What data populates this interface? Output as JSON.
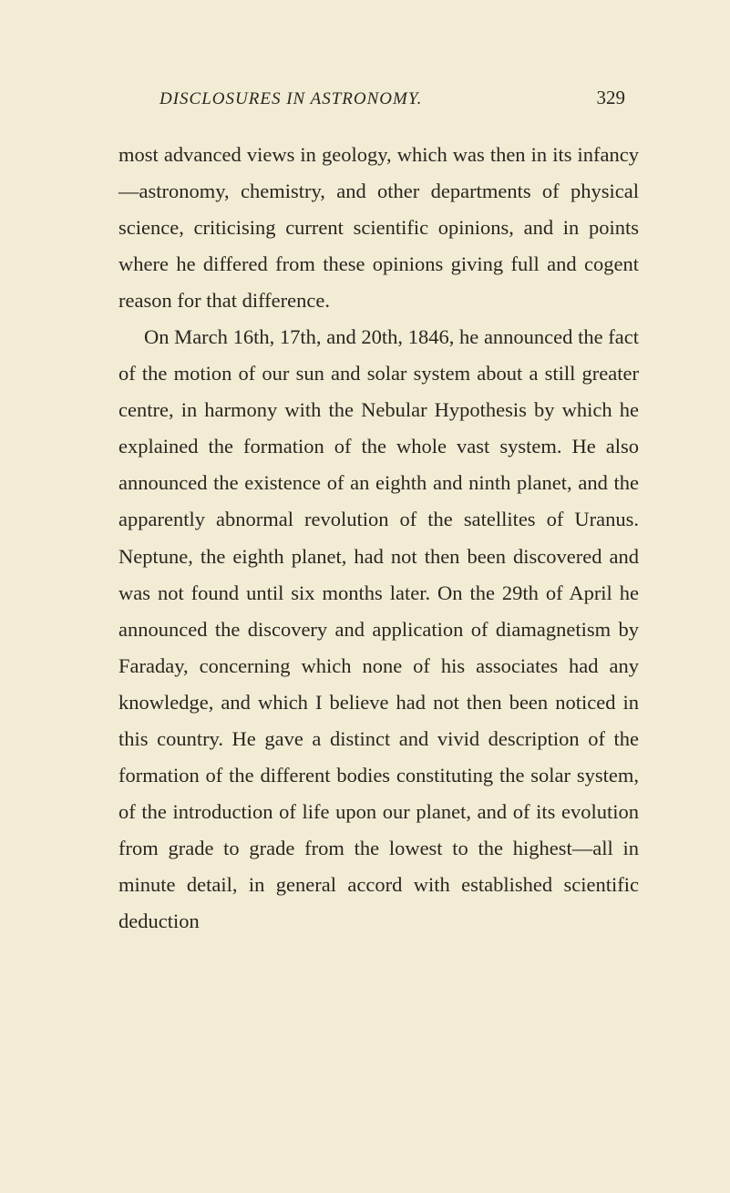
{
  "header": {
    "title": "DISCLOSURES IN ASTRONOMY.",
    "pageNumber": "329"
  },
  "paragraphs": {
    "p1": "most advanced views in geology, which was then in its infancy—astronomy, chemistry, and other departments of physical science, criticising current scientific opinions, and in points where he differed from these opinions giving full and cogent reason for that difference.",
    "p2": "On March 16th, 17th, and 20th, 1846, he announced the fact of the motion of our sun and solar system about a still greater centre, in harmony with the Nebular Hypothesis by which he explained the formation of the whole vast system. He also announced the existence of an eighth and ninth planet, and the apparently abnormal revolution of the satellites of Uranus. Neptune, the eighth planet, had not then been discovered and was not found until six months later. On the 29th of April he announced the discovery and application of diamagnetism by Faraday, concerning which none of his associates had any knowledge, and which I believe had not then been noticed in this country. He gave a distinct and vivid description of the formation of the different bodies constituting the solar system, of the introduction of life upon our planet, and of its evolution from grade to grade from the lowest to the highest—all in minute detail, in general accord with established scientific deduction"
  },
  "styling": {
    "backgroundColor": "#f2ecd5",
    "textColor": "#2a2520",
    "bodyFontSize": 22.5,
    "lineHeight": 1.78,
    "headerFontSize": 19,
    "pageNumberFontSize": 21
  }
}
